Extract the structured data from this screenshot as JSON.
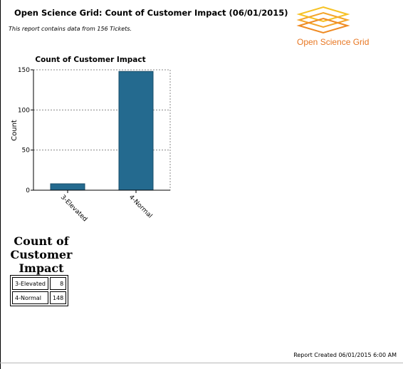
{
  "header": {
    "title": "Open Science Grid: Count of Customer Impact (06/01/2015)",
    "subtitle": "This report contains data from 156 Tickets."
  },
  "logo": {
    "text": "Open Science Grid",
    "icon": "osg-stacked-diamonds-logo",
    "color": "#e87722"
  },
  "chart_data": {
    "type": "bar",
    "title": "Count of Customer Impact",
    "xlabel": "",
    "ylabel": "Count",
    "categories": [
      "3-Elevated",
      "4-Normal"
    ],
    "values": [
      8,
      148
    ],
    "ylim": [
      0,
      150
    ],
    "yticks": [
      0,
      50,
      100,
      150
    ],
    "grid": true,
    "legend": "none",
    "bar_color": "#246a8f"
  },
  "summary": {
    "title_lines": [
      "Count of",
      "Customer",
      "Impact"
    ],
    "rows": [
      {
        "label": "3-Elevated",
        "value": "8"
      },
      {
        "label": "4-Normal",
        "value": "148"
      }
    ]
  },
  "footer": {
    "text": "Report Created 06/01/2015 6:00 AM"
  }
}
